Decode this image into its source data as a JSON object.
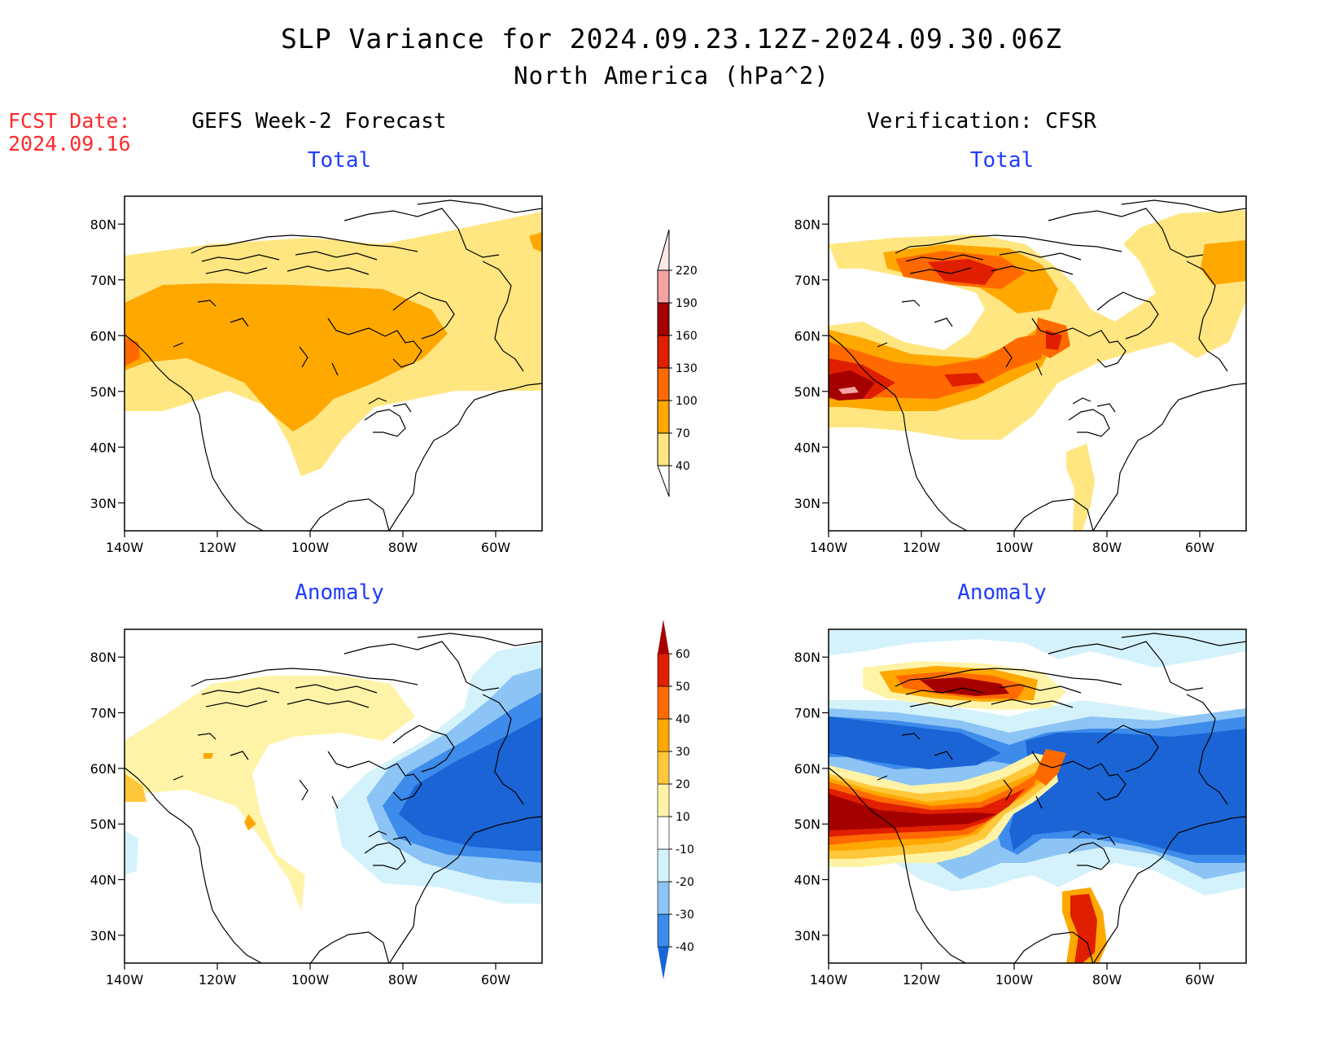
{
  "title": {
    "line1": "SLP Variance for 2024.09.23.12Z-2024.09.30.06Z",
    "line2": "North America (hPa^2)"
  },
  "fcst": {
    "label": "FCST Date:",
    "date": "2024.09.16"
  },
  "columns": {
    "left": "GEFS Week-2 Forecast",
    "right": "Verification: CFSR"
  },
  "panels": [
    {
      "id": "fcst-total",
      "subtitle": "Total"
    },
    {
      "id": "verif-total",
      "subtitle": "Total"
    },
    {
      "id": "fcst-anomaly",
      "subtitle": "Anomaly"
    },
    {
      "id": "verif-anomaly",
      "subtitle": "Anomaly"
    }
  ],
  "axes": {
    "lat_labels": [
      "80N",
      "70N",
      "60N",
      "50N",
      "40N",
      "30N"
    ],
    "lon_labels": [
      "140W",
      "120W",
      "100W",
      "80W",
      "60W"
    ],
    "lat_range": [
      25,
      85
    ],
    "lon_range": [
      -140,
      -50
    ]
  },
  "colorbars": {
    "total": {
      "levels": [
        "40",
        "70",
        "100",
        "130",
        "160",
        "190",
        "220"
      ],
      "colors": [
        "#ffe680",
        "#ffa800",
        "#ff6a00",
        "#e01e00",
        "#a50000",
        "#f4a2a2",
        "#fde7e7"
      ]
    },
    "anomaly": {
      "levels": [
        "-40",
        "-30",
        "-20",
        "-10",
        "10",
        "20",
        "30",
        "40",
        "50",
        "60"
      ],
      "colors": [
        "#1a64d6",
        "#3d8bea",
        "#8cc4f5",
        "#d4f2fb",
        "#ffffff",
        "#fff3a8",
        "#ffc83a",
        "#ffa800",
        "#ff6a00",
        "#e01e00",
        "#a50000"
      ]
    }
  }
}
